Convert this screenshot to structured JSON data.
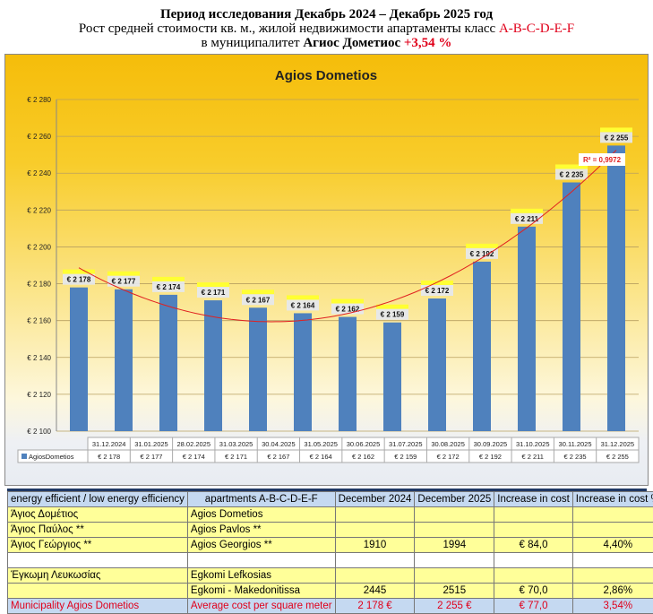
{
  "header": {
    "line1": "Период исследования Декабрь 2024 – Декабрь 2025 год",
    "line2_prefix": "Рост средней стоимости кв. м., жилой недвижимости апартаменты класс ",
    "line2_class": "A-B-C-D-E-F",
    "line3_prefix": "в муниципалитет ",
    "line3_name": "Агиос Дометиос",
    "line3_pct": "+3,54 %"
  },
  "chart_data": {
    "type": "bar",
    "title": "Agios Dometios",
    "series": [
      {
        "name": "AgiosDometios",
        "values": [
          2178,
          2177,
          2174,
          2171,
          2167,
          2164,
          2162,
          2159,
          2172,
          2192,
          2211,
          2235,
          2255
        ]
      }
    ],
    "categories": [
      "31.12.2024",
      "31.01.2025",
      "28.02.2025",
      "31.03.2025",
      "30.04.2025",
      "31.05.2025",
      "30.06.2025",
      "31.07.2025",
      "30.08.2025",
      "30.09.2025",
      "31.10.2025",
      "30.11.2025",
      "31.12.2025"
    ],
    "data_labels": [
      "€ 2 178",
      "€ 2 177",
      "€ 2 174",
      "€ 2 171",
      "€ 2 167",
      "€ 2 164",
      "€ 2 162",
      "€ 2 159",
      "€ 2 172",
      "€ 2 192",
      "€ 2 211",
      "€ 2 235",
      "€ 2 255"
    ],
    "table_values": [
      "€ 2 178",
      "€ 2 177",
      "€ 2 174",
      "€ 2 171",
      "€ 2 167",
      "€ 2 164",
      "€ 2 162",
      "€ 2 159",
      "€ 2 172",
      "€ 2 192",
      "€ 2 211",
      "€ 2 235",
      "€ 2 255"
    ],
    "yticks": [
      2100,
      2120,
      2140,
      2160,
      2180,
      2200,
      2220,
      2240,
      2260,
      2280
    ],
    "ytick_labels": [
      "€ 2 100",
      "€ 2 120",
      "€ 2 140",
      "€ 2 160",
      "€ 2 180",
      "€ 2 200",
      "€ 2 220",
      "€ 2 240",
      "€ 2 260",
      "€ 2 280"
    ],
    "ylim": [
      2100,
      2280
    ],
    "trendline": "polynomial",
    "r2_label": "R² = 0,9972",
    "bar_color": "#4f81bd",
    "trend_color": "#e02020"
  },
  "table": {
    "header": [
      "energy efficient / low energy efficiency",
      "apartments A-B-C-D-E-F",
      "December 2024",
      "December 2025",
      "Increase in cost",
      "Increase in cost  %"
    ],
    "rows": [
      {
        "cls": "y",
        "cells": [
          "Άγιος Δομέτιος",
          "Agios Dometios",
          "",
          "",
          "",
          ""
        ]
      },
      {
        "cls": "y",
        "cells": [
          "Άγιος Παύλος **",
          "Agios Pavlos **",
          "",
          "",
          "",
          ""
        ]
      },
      {
        "cls": "y",
        "cells": [
          "Άγιος Γεώργιος **",
          "Agios Georgios **",
          "1910",
          "1994",
          "€ 84,0",
          "4,40%"
        ]
      },
      {
        "cls": "w",
        "cells": [
          "",
          "",
          "",
          "",
          "",
          ""
        ]
      },
      {
        "cls": "y",
        "cells": [
          "Έγκωμη Λευκωσίας",
          "Egkomi Lefkosias",
          "",
          "",
          "",
          ""
        ]
      },
      {
        "cls": "y",
        "cells": [
          "",
          "Egkomi - Makedonitissa",
          "2445",
          "2515",
          "€ 70,0",
          "2,86%"
        ]
      },
      {
        "cls": "r",
        "cells": [
          "Municipality  Agios Dometios",
          "Average cost per square meter",
          "2 178 €",
          "2 255 €",
          "€ 77,0",
          "3,54%"
        ]
      }
    ]
  }
}
